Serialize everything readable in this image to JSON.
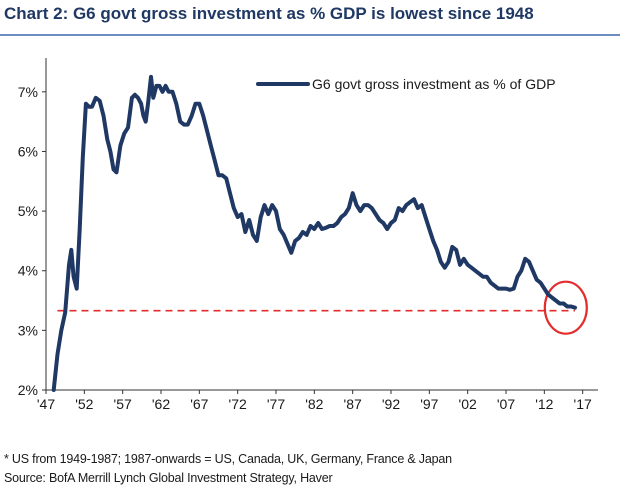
{
  "title": "Chart 2: G6 govt gross investment as % GDP is lowest since 1948",
  "footnote": "* US from 1949-1987; 1987-onwards = US, Canada, UK, Germany, France & Japan",
  "source": "Source: BofA Merrill Lynch Global Investment Strategy, Haver",
  "colors": {
    "title": "#1f3864",
    "line": "#1f3864",
    "reference": "#e32d2d",
    "circle": "#e32d2d"
  },
  "chart_data": {
    "type": "line",
    "title": "Chart 2: G6 govt gross investment as % GDP is lowest since 1948",
    "xlabel": "",
    "ylabel": "",
    "xlim": [
      1947,
      2019
    ],
    "ylim": [
      2,
      7.5
    ],
    "grid": false,
    "legend_position": "top-right",
    "x_tick_labels": [
      "'47",
      "'52",
      "'57",
      "'62",
      "'67",
      "'72",
      "'77",
      "'82",
      "'87",
      "'92",
      "'97",
      "'02",
      "'07",
      "'12",
      "'17"
    ],
    "x_tick_values": [
      1947,
      1952,
      1957,
      1962,
      1967,
      1972,
      1977,
      1982,
      1987,
      1992,
      1997,
      2002,
      2007,
      2012,
      2017
    ],
    "y_tick_labels": [
      "2%",
      "3%",
      "4%",
      "5%",
      "6%",
      "7%"
    ],
    "y_tick_values": [
      2,
      3,
      4,
      5,
      6,
      7
    ],
    "reference_line": {
      "y": 3.33,
      "x_from": 1948.5,
      "x_to": 2016,
      "style": "dashed"
    },
    "highlight_circle": {
      "x": 2014.8,
      "y": 3.38
    },
    "series": [
      {
        "name": "G6 govt gross investment as % of GDP",
        "x": [
          1948.0,
          1948.5,
          1949.0,
          1949.5,
          1950.0,
          1950.3,
          1950.6,
          1951.0,
          1951.4,
          1951.8,
          1952.2,
          1952.6,
          1953.0,
          1953.5,
          1954.0,
          1954.5,
          1955.0,
          1955.4,
          1955.8,
          1956.2,
          1956.7,
          1957.2,
          1957.7,
          1958.2,
          1958.6,
          1959.0,
          1959.4,
          1959.7,
          1960.0,
          1960.3,
          1960.7,
          1961.0,
          1961.4,
          1961.8,
          1962.2,
          1962.6,
          1963.0,
          1963.5,
          1964.0,
          1964.5,
          1965.0,
          1965.5,
          1966.0,
          1966.5,
          1967.0,
          1967.5,
          1968.0,
          1968.5,
          1969.0,
          1969.5,
          1970.0,
          1970.5,
          1971.0,
          1971.5,
          1972.0,
          1972.5,
          1973.0,
          1973.5,
          1974.0,
          1974.5,
          1975.0,
          1975.5,
          1976.0,
          1976.5,
          1977.0,
          1977.5,
          1978.0,
          1978.5,
          1979.0,
          1979.5,
          1980.0,
          1980.5,
          1981.0,
          1981.5,
          1982.0,
          1982.5,
          1983.0,
          1983.5,
          1984.0,
          1984.5,
          1985.0,
          1985.5,
          1986.0,
          1986.5,
          1987.0,
          1987.5,
          1988.0,
          1988.5,
          1989.0,
          1989.5,
          1990.0,
          1990.5,
          1991.0,
          1991.5,
          1992.0,
          1992.5,
          1993.0,
          1993.5,
          1994.0,
          1994.5,
          1995.0,
          1995.5,
          1996.0,
          1996.5,
          1997.0,
          1997.5,
          1998.0,
          1998.5,
          1999.0,
          1999.5,
          2000.0,
          2000.5,
          2001.0,
          2001.5,
          2002.0,
          2002.5,
          2003.0,
          2003.5,
          2004.0,
          2004.5,
          2005.0,
          2005.5,
          2006.0,
          2006.5,
          2007.0,
          2007.5,
          2008.0,
          2008.5,
          2009.0,
          2009.5,
          2010.0,
          2010.5,
          2011.0,
          2011.5,
          2012.0,
          2012.5,
          2013.0,
          2013.5,
          2014.0,
          2014.5,
          2015.0,
          2015.5,
          2016.0
        ],
        "values": [
          2.0,
          2.6,
          3.0,
          3.3,
          4.1,
          4.35,
          3.9,
          3.7,
          4.7,
          5.9,
          6.8,
          6.75,
          6.75,
          6.9,
          6.85,
          6.6,
          6.2,
          6.0,
          5.7,
          5.65,
          6.1,
          6.3,
          6.4,
          6.9,
          6.95,
          6.9,
          6.8,
          6.6,
          6.5,
          6.8,
          7.25,
          6.9,
          7.1,
          7.1,
          7.0,
          7.1,
          7.0,
          7.0,
          6.8,
          6.5,
          6.45,
          6.45,
          6.6,
          6.8,
          6.8,
          6.6,
          6.35,
          6.1,
          5.85,
          5.6,
          5.6,
          5.55,
          5.3,
          5.05,
          4.9,
          4.95,
          4.65,
          4.85,
          4.6,
          4.5,
          4.9,
          5.1,
          4.95,
          5.1,
          5.0,
          4.7,
          4.6,
          4.45,
          4.3,
          4.5,
          4.55,
          4.65,
          4.6,
          4.75,
          4.7,
          4.8,
          4.7,
          4.72,
          4.75,
          4.75,
          4.8,
          4.9,
          4.95,
          5.05,
          5.3,
          5.1,
          5.0,
          5.1,
          5.1,
          5.05,
          4.95,
          4.85,
          4.8,
          4.7,
          4.8,
          4.85,
          5.05,
          5.0,
          5.1,
          5.15,
          5.2,
          5.05,
          5.1,
          4.9,
          4.7,
          4.5,
          4.35,
          4.15,
          4.05,
          4.15,
          4.4,
          4.35,
          4.1,
          4.2,
          4.1,
          4.05,
          4.0,
          3.95,
          3.9,
          3.9,
          3.8,
          3.75,
          3.7,
          3.7,
          3.7,
          3.68,
          3.7,
          3.9,
          4.0,
          4.2,
          4.15,
          4.0,
          3.85,
          3.8,
          3.7,
          3.6,
          3.55,
          3.5,
          3.45,
          3.45,
          3.4,
          3.4,
          3.38
        ]
      }
    ]
  }
}
